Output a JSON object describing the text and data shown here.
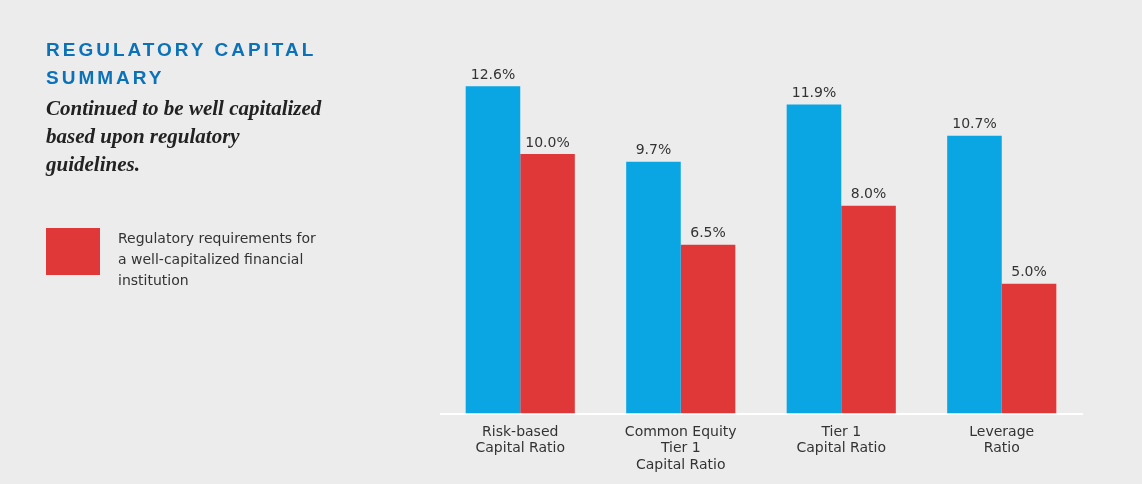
{
  "chart_data": {
    "type": "bar",
    "title": "REGULATORY CAPITAL SUMMARY",
    "subtitle": "Continued to be well capitalized based upon regulatory guidelines.",
    "categories": [
      "Risk-based Capital Ratio",
      "Common Equity Tier 1 Capital Ratio",
      "Tier 1 Capital Ratio",
      "Leverage Ratio"
    ],
    "series": [
      {
        "color": "#0aa5e3",
        "values": [
          12.6,
          9.7,
          11.9,
          10.7
        ],
        "value_labels": [
          "12.6%",
          "9.7%",
          "11.9%",
          "10.7%"
        ]
      },
      {
        "name": "Regulatory requirements for a well-capitalized financial institution",
        "color": "#e03838",
        "values": [
          10.0,
          6.5,
          8.0,
          5.0
        ],
        "value_labels": [
          "10.0%",
          "6.5%",
          "8.0%",
          "5.0%"
        ]
      }
    ],
    "tick_labels": "x",
    "legend": "left",
    "grid": false
  }
}
